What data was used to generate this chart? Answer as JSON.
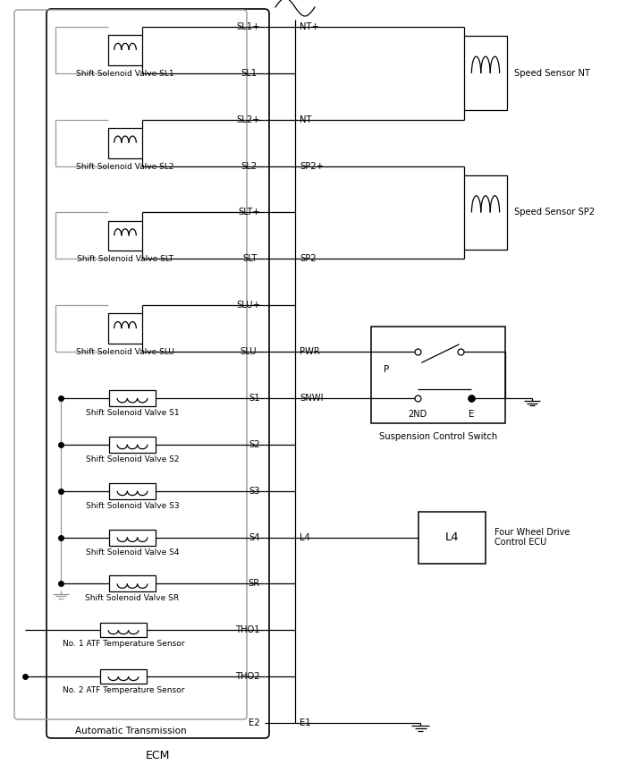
{
  "bg_color": "#ffffff",
  "line_color": "#000000",
  "gray_color": "#999999",
  "ecm_pins_left": [
    "SL1+",
    "SL1-",
    "SL2+",
    "SL2-",
    "SLT+",
    "SLT-",
    "SLU+",
    "SLU-",
    "S1",
    "S2",
    "S3",
    "S4",
    "SR",
    "THO1",
    "THO2",
    "E2"
  ],
  "ecm_pins_right": [
    "NT+",
    "",
    "NT-",
    "SP2+",
    "",
    "SP2-",
    "",
    "PWR",
    "SNWI",
    "",
    "",
    "L4",
    "",
    "",
    "",
    "E1"
  ],
  "sl_solenoids": [
    {
      "label": "Shift Solenoid Valve SL1",
      "pin_plus": 0,
      "pin_minus": 1
    },
    {
      "label": "Shift Solenoid Valve SL2",
      "pin_plus": 2,
      "pin_minus": 3
    },
    {
      "label": "Shift Solenoid Valve SLT",
      "pin_plus": 4,
      "pin_minus": 5
    },
    {
      "label": "Shift Solenoid Valve SLU",
      "pin_plus": 6,
      "pin_minus": 7
    }
  ],
  "s_solenoids": [
    {
      "label": "Shift Solenoid Valve S1",
      "pin": 8
    },
    {
      "label": "Shift Solenoid Valve S2",
      "pin": 9
    },
    {
      "label": "Shift Solenoid Valve S3",
      "pin": 10
    },
    {
      "label": "Shift Solenoid Valve S4",
      "pin": 11
    },
    {
      "label": "Shift Solenoid Valve SR",
      "pin": 12
    }
  ],
  "tho_sensors": [
    {
      "label": "No. 1 ATF Temperature Sensor",
      "pin": 13
    },
    {
      "label": "No. 2 ATF Temperature Sensor",
      "pin": 14
    }
  ],
  "speed_sensors": [
    {
      "label": "Speed Sensor NT",
      "pin_plus": 0,
      "pin_minus": 2
    },
    {
      "label": "Speed Sensor SP2",
      "pin_plus": 3,
      "pin_minus": 5
    }
  ],
  "switch_label": "Suspension Control Switch",
  "switch_pwr_pin": 7,
  "switch_snwi_pin": 8,
  "l4_label": "Four Wheel Drive\nControl ECU",
  "l4_pin": 11,
  "e1_pin": 15,
  "figw": 6.9,
  "figh": 8.55,
  "dpi": 100
}
